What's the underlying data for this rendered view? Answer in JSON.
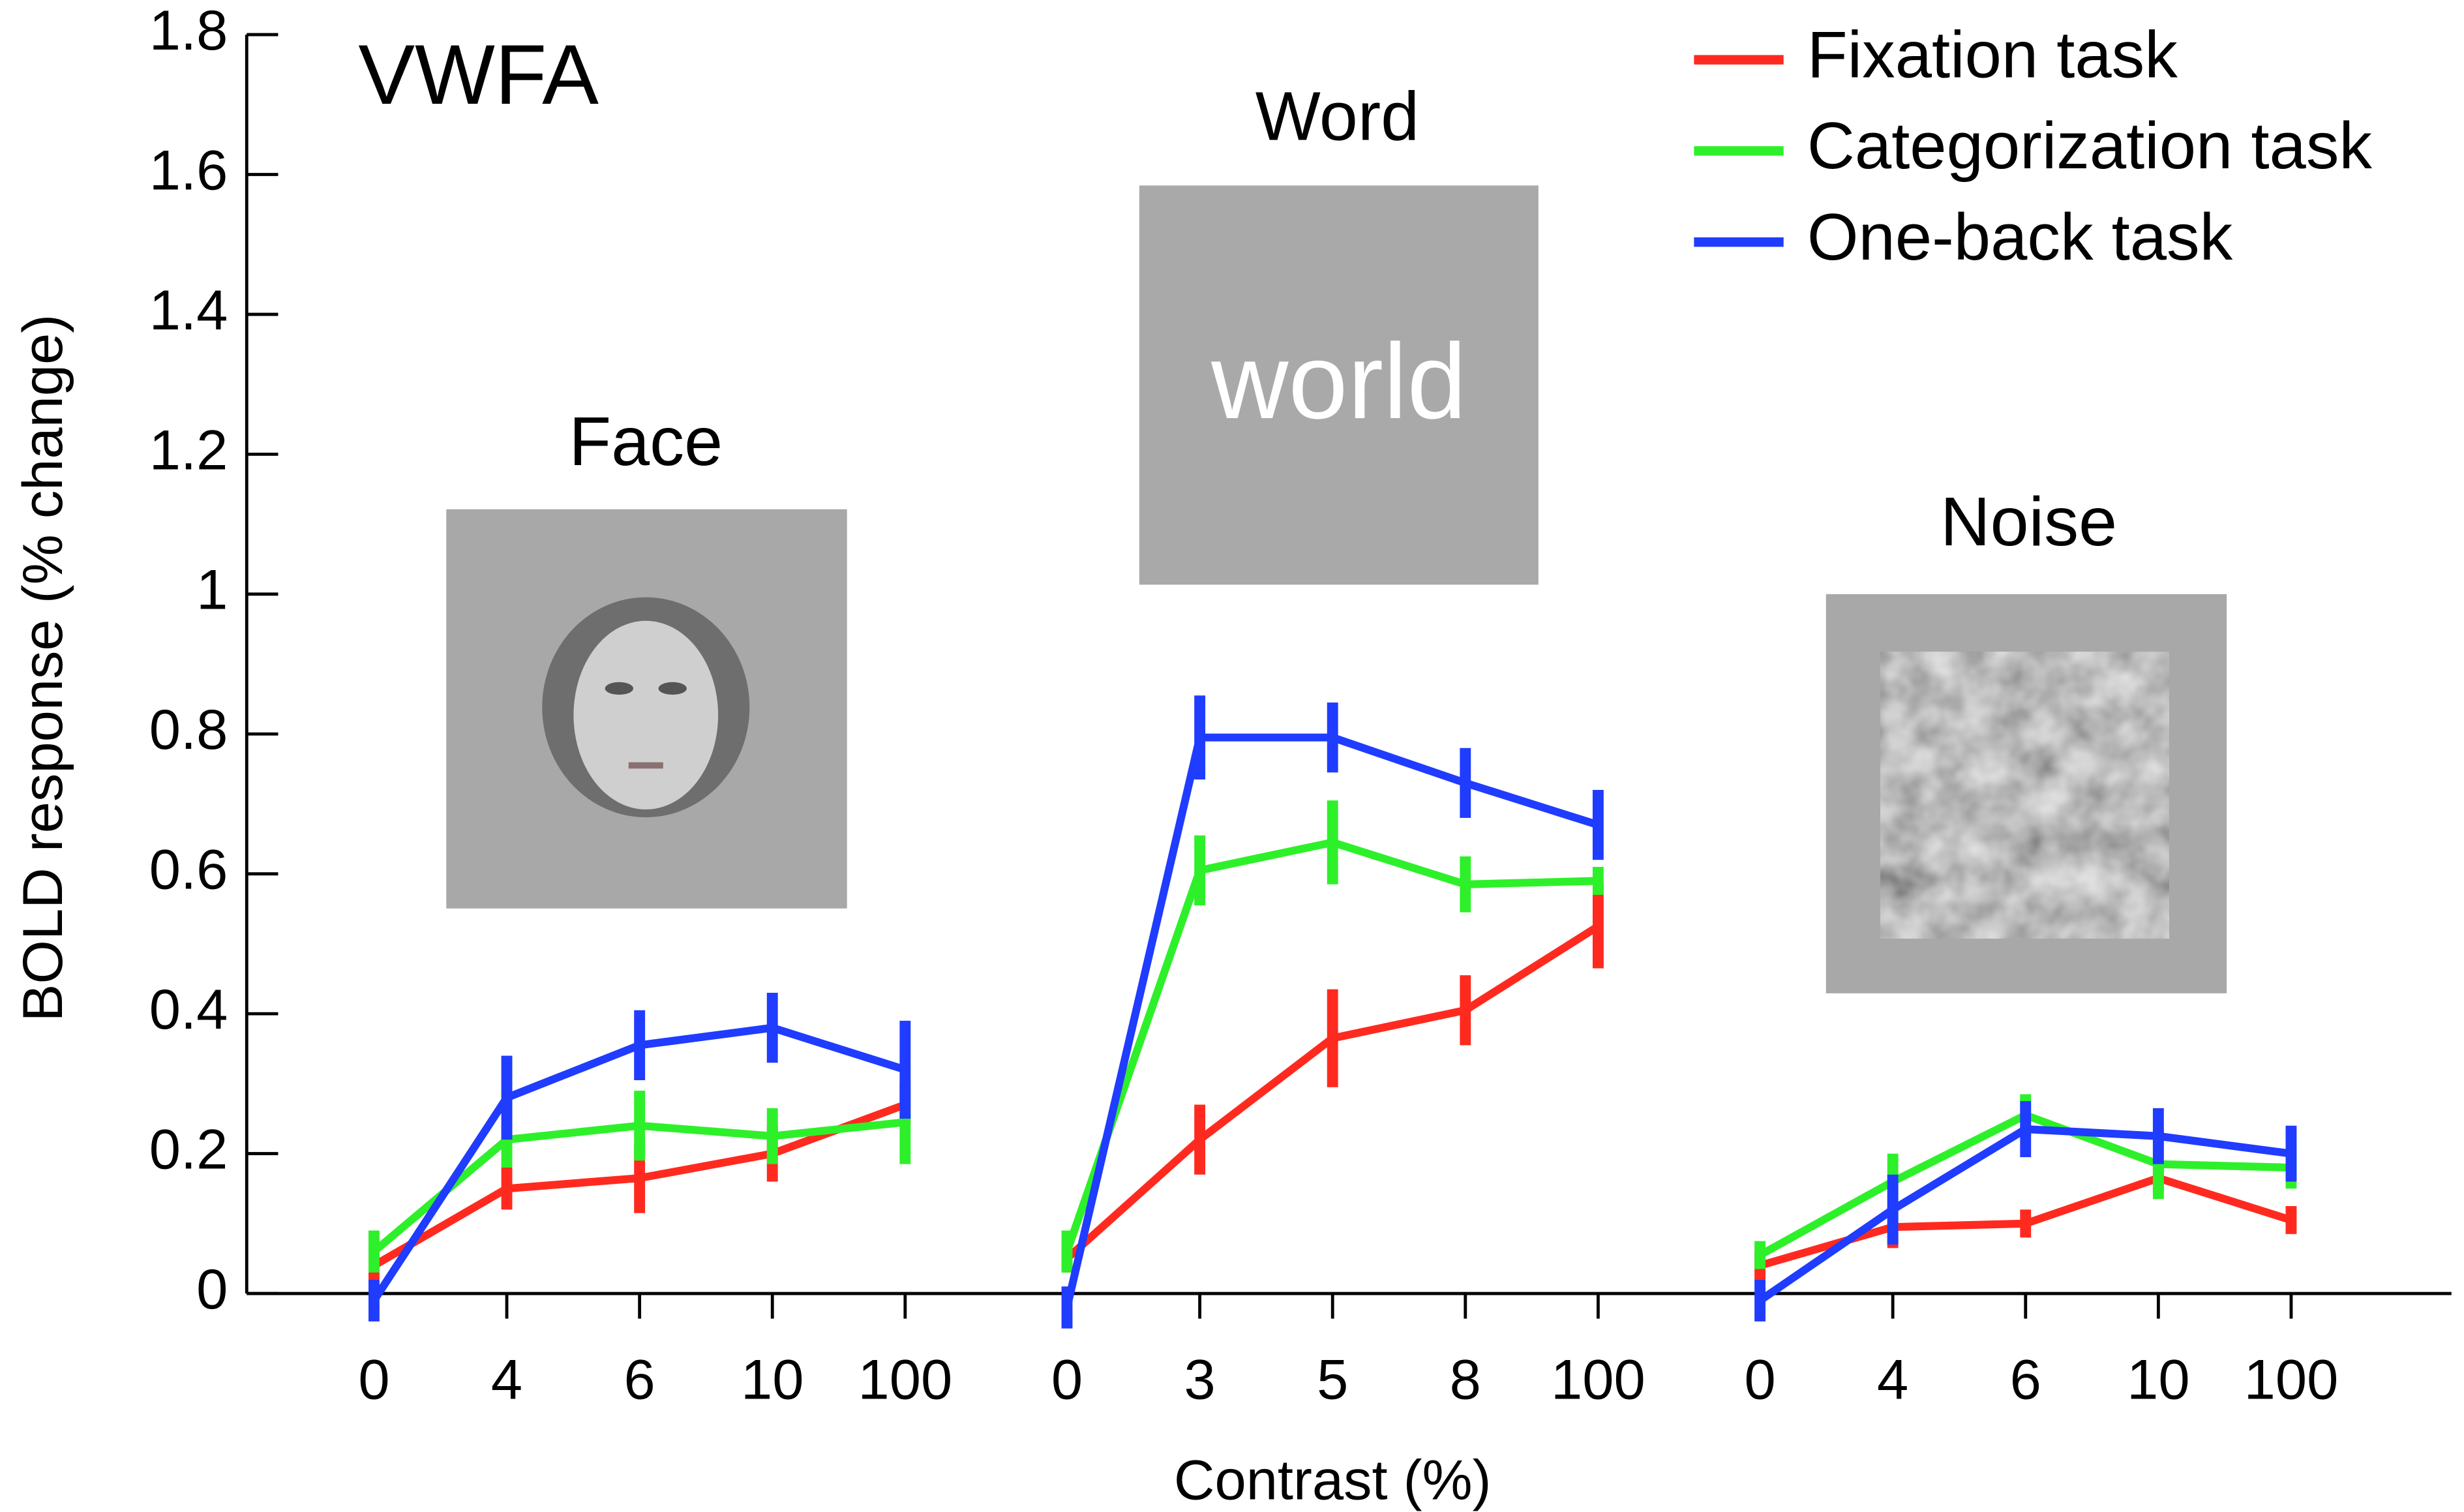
{
  "chart_data": {
    "type": "line",
    "title": "VWFA",
    "ylabel": "BOLD response (% change)",
    "xlabel": "Contrast (%)",
    "ylim": [
      0,
      1.8
    ],
    "yticks": [
      0,
      0.2,
      0.4,
      0.6,
      0.8,
      1,
      1.2,
      1.4,
      1.6,
      1.8
    ],
    "groups": [
      {
        "label": "Face",
        "categories": [
          "0",
          "4",
          "6",
          "10",
          "100"
        ]
      },
      {
        "label": "Word",
        "stimulus_text": "world",
        "categories": [
          "0",
          "3",
          "5",
          "8",
          "100"
        ]
      },
      {
        "label": "Noise",
        "categories": [
          "0",
          "4",
          "6",
          "10",
          "100"
        ]
      }
    ],
    "series": [
      {
        "name": "Fixation task",
        "color": "#ff2a1f",
        "values": [
          [
            0.04,
            0.15,
            0.165,
            0.2,
            0.27
          ],
          [
            0.05,
            0.22,
            0.365,
            0.405,
            0.525
          ],
          [
            0.04,
            0.095,
            0.1,
            0.165,
            0.105
          ]
        ],
        "errors": [
          [
            0.02,
            0.03,
            0.05,
            0.04,
            0.03
          ],
          [
            0.02,
            0.05,
            0.07,
            0.05,
            0.06
          ],
          [
            0.02,
            0.03,
            0.02,
            0.02,
            0.02
          ]
        ]
      },
      {
        "name": "Categorization task",
        "color": "#2ef02a",
        "values": [
          [
            0.06,
            0.22,
            0.24,
            0.225,
            0.245
          ],
          [
            0.06,
            0.605,
            0.645,
            0.585,
            0.59
          ],
          [
            0.055,
            0.16,
            0.255,
            0.185,
            0.18
          ]
        ],
        "errors": [
          [
            0.03,
            0.04,
            0.05,
            0.04,
            0.06
          ],
          [
            0.03,
            0.05,
            0.06,
            0.04,
            0.02
          ],
          [
            0.02,
            0.04,
            0.03,
            0.05,
            0.03
          ]
        ]
      },
      {
        "name": "One-back task",
        "color": "#1f3cff",
        "values": [
          [
            -0.01,
            0.28,
            0.355,
            0.38,
            0.32
          ],
          [
            -0.02,
            0.795,
            0.795,
            0.73,
            0.67
          ],
          [
            -0.01,
            0.12,
            0.235,
            0.225,
            0.2
          ]
        ],
        "errors": [
          [
            0.03,
            0.06,
            0.05,
            0.05,
            0.07
          ],
          [
            0.03,
            0.06,
            0.05,
            0.05,
            0.05
          ],
          [
            0.03,
            0.05,
            0.04,
            0.04,
            0.04
          ]
        ]
      }
    ]
  }
}
